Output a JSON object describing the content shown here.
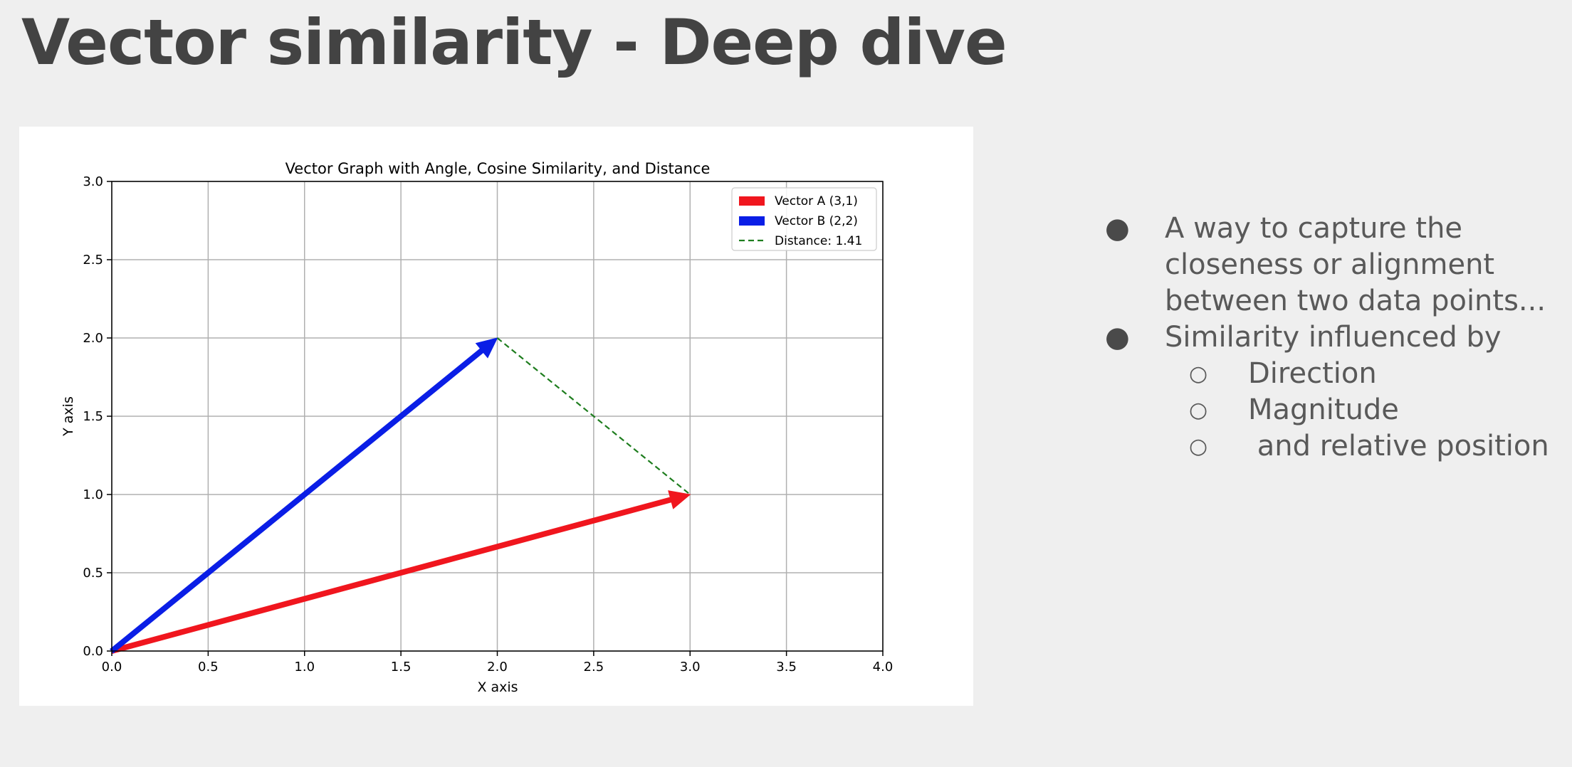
{
  "slide": {
    "title": "Vector similarity - Deep dive",
    "bullets": [
      {
        "text": "A way to capture the closeness or alignment between two data points..."
      },
      {
        "text": "Similarity influenced by",
        "children": [
          "Direction",
          "Magnitude",
          " and relative position"
        ]
      }
    ]
  },
  "chart_data": {
    "type": "line",
    "title": "Vector Graph with Angle, Cosine Similarity, and Distance",
    "xlabel": "X axis",
    "ylabel": "Y axis",
    "xlim": [
      0,
      4
    ],
    "ylim": [
      0,
      3
    ],
    "xticks": [
      "0.0",
      "0.5",
      "1.0",
      "1.5",
      "2.0",
      "2.5",
      "3.0",
      "3.5",
      "4.0"
    ],
    "yticks": [
      "0.0",
      "0.5",
      "1.0",
      "1.5",
      "2.0",
      "2.5",
      "3.0"
    ],
    "grid": true,
    "legend_position": "top-right",
    "series": [
      {
        "name": "Vector A (3,1)",
        "kind": "arrow",
        "from": [
          0,
          0
        ],
        "to": [
          3,
          1
        ],
        "color": "#f0161e"
      },
      {
        "name": "Vector B (2,2)",
        "kind": "arrow",
        "from": [
          0,
          0
        ],
        "to": [
          2,
          2
        ],
        "color": "#0a1ee6"
      },
      {
        "name": "Distance: 1.41",
        "kind": "dashed",
        "from": [
          2,
          2
        ],
        "to": [
          3,
          1
        ],
        "color": "#1e7d1e"
      }
    ]
  }
}
